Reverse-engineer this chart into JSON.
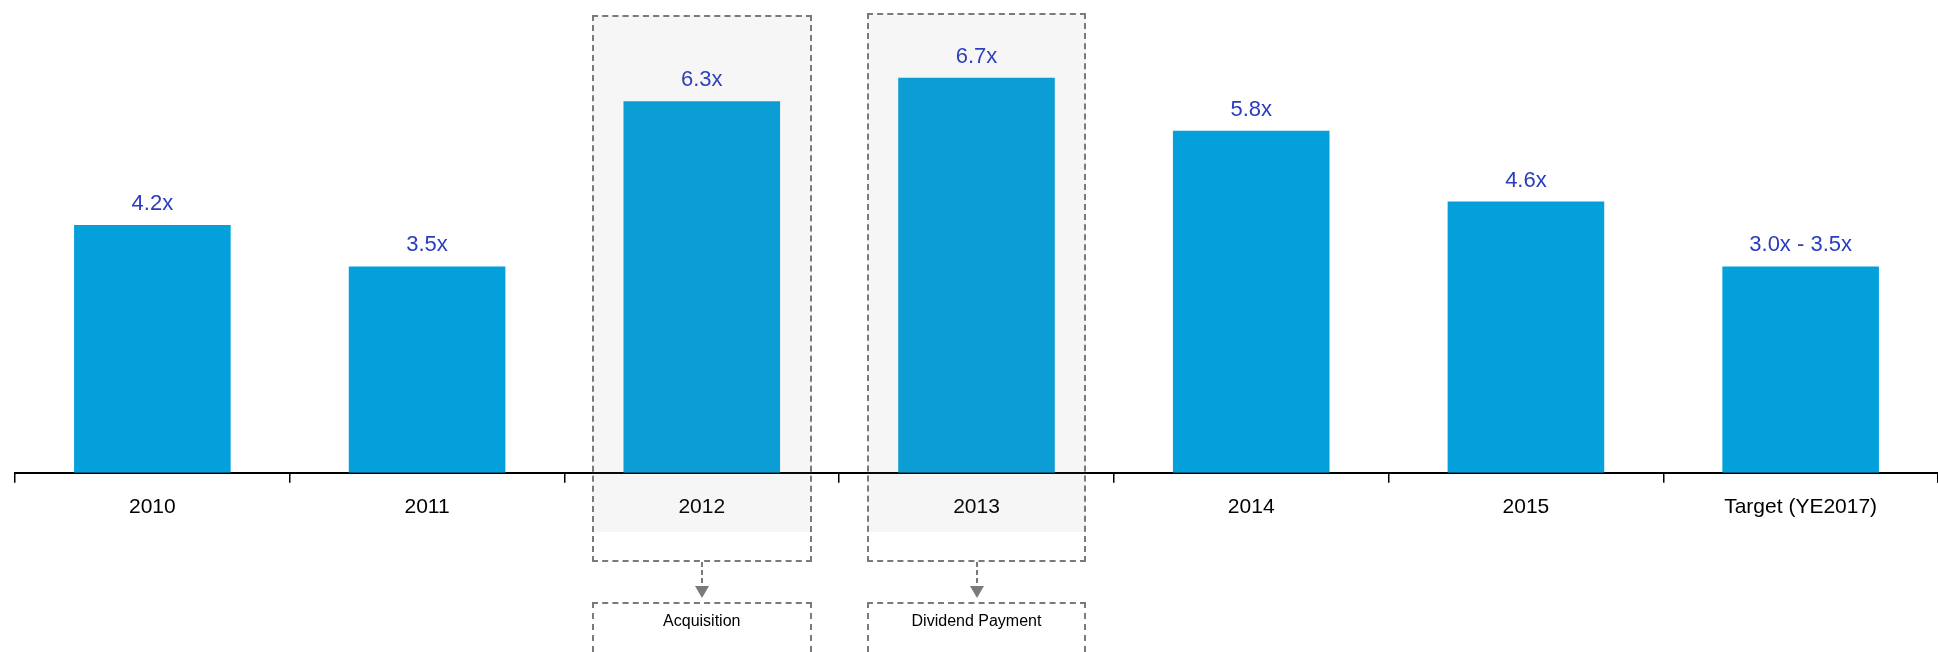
{
  "chart_data": {
    "type": "bar",
    "categories": [
      "2010",
      "2011",
      "2012",
      "2013",
      "2014",
      "2015",
      "Target (YE2017)"
    ],
    "values": [
      4.2,
      3.5,
      6.3,
      6.7,
      5.8,
      4.6,
      3.5
    ],
    "value_labels": [
      "4.2x",
      "3.5x",
      "6.3x",
      "6.7x",
      "5.8x",
      "4.6x",
      null
    ],
    "color": "#04a0db",
    "grid": false,
    "legend": false,
    "tick_labels": "x",
    "bands": [
      {
        "axis": "x",
        "from": "2012",
        "to": "2012",
        "color": "#7a7a7a"
      },
      {
        "axis": "x",
        "from": "2013",
        "to": "2013",
        "color": "#7a7a7a"
      }
    ],
    "annotations": [
      "Acquisition",
      "Dividend Payment",
      {
        "text": "3.0x - 3.5x",
        "x": "Target (YE2017)",
        "y": 3.5
      }
    ]
  }
}
